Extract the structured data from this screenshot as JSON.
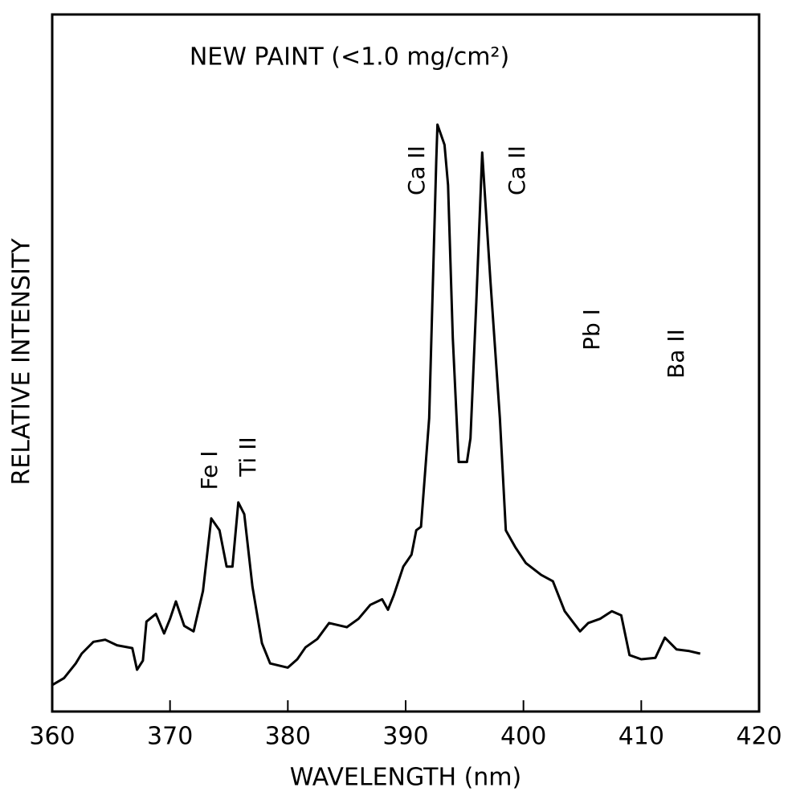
{
  "chart_data": {
    "type": "line",
    "title": "NEW PAINT (<1.0 mg/cm²)",
    "x_label": "WAVELENGTH (nm)",
    "y_label": "RELATIVE INTENSITY",
    "annotations": [
      "Fe I",
      "Ti II",
      "Ca II",
      "Ca II",
      "Pb I",
      "Ba II"
    ],
    "color": "#000000",
    "xlim": [
      360,
      420
    ],
    "xticks": [
      360,
      370,
      380,
      390,
      400,
      410,
      420
    ],
    "ylim": [
      0,
      100
    ],
    "x": [
      360,
      361,
      362,
      362.5,
      363.5,
      364.5,
      365.5,
      366.8,
      367.2,
      367.7,
      368,
      368.8,
      369.5,
      370,
      370.5,
      371.2,
      372,
      372.8,
      373.5,
      374.2,
      374.8,
      375.3,
      375.8,
      376.3,
      377,
      377.8,
      378.5,
      380,
      380.8,
      381.5,
      382.5,
      383.5,
      385,
      386,
      387,
      388,
      388.5,
      389,
      389.8,
      390.5,
      390.9,
      391.3,
      392,
      392.6,
      392.7,
      393.3,
      393.6,
      394,
      394.5,
      395.2,
      395.5,
      396,
      396.5,
      397.2,
      398,
      398.5,
      399.3,
      400.2,
      401.5,
      402.5,
      403.5,
      404.8,
      405.5,
      406.5,
      407.5,
      408.3,
      409,
      410,
      411.2,
      412,
      413,
      414,
      415
    ],
    "values": [
      3.8,
      4.8,
      6.9,
      8.3,
      10.0,
      10.3,
      9.5,
      9.1,
      6.0,
      7.3,
      12.9,
      14.0,
      11.2,
      13.3,
      15.8,
      12.3,
      11.5,
      17.3,
      27.7,
      26.0,
      20.8,
      20.8,
      30.0,
      28.3,
      17.9,
      9.8,
      6.9,
      6.3,
      7.5,
      9.2,
      10.4,
      12.7,
      12.1,
      13.3,
      15.3,
      16.1,
      14.6,
      16.7,
      20.8,
      22.5,
      26.0,
      26.5,
      42.1,
      79.0,
      84.2,
      81.3,
      75.5,
      53.6,
      35.8,
      35.8,
      39.2,
      58.8,
      80.2,
      61.7,
      42.1,
      26.0,
      23.6,
      21.3,
      19.6,
      18.7,
      14.4,
      11.5,
      12.7,
      13.3,
      14.4,
      13.8,
      8.1,
      7.5,
      7.7,
      10.6,
      8.9,
      8.7,
      8.3
    ]
  }
}
